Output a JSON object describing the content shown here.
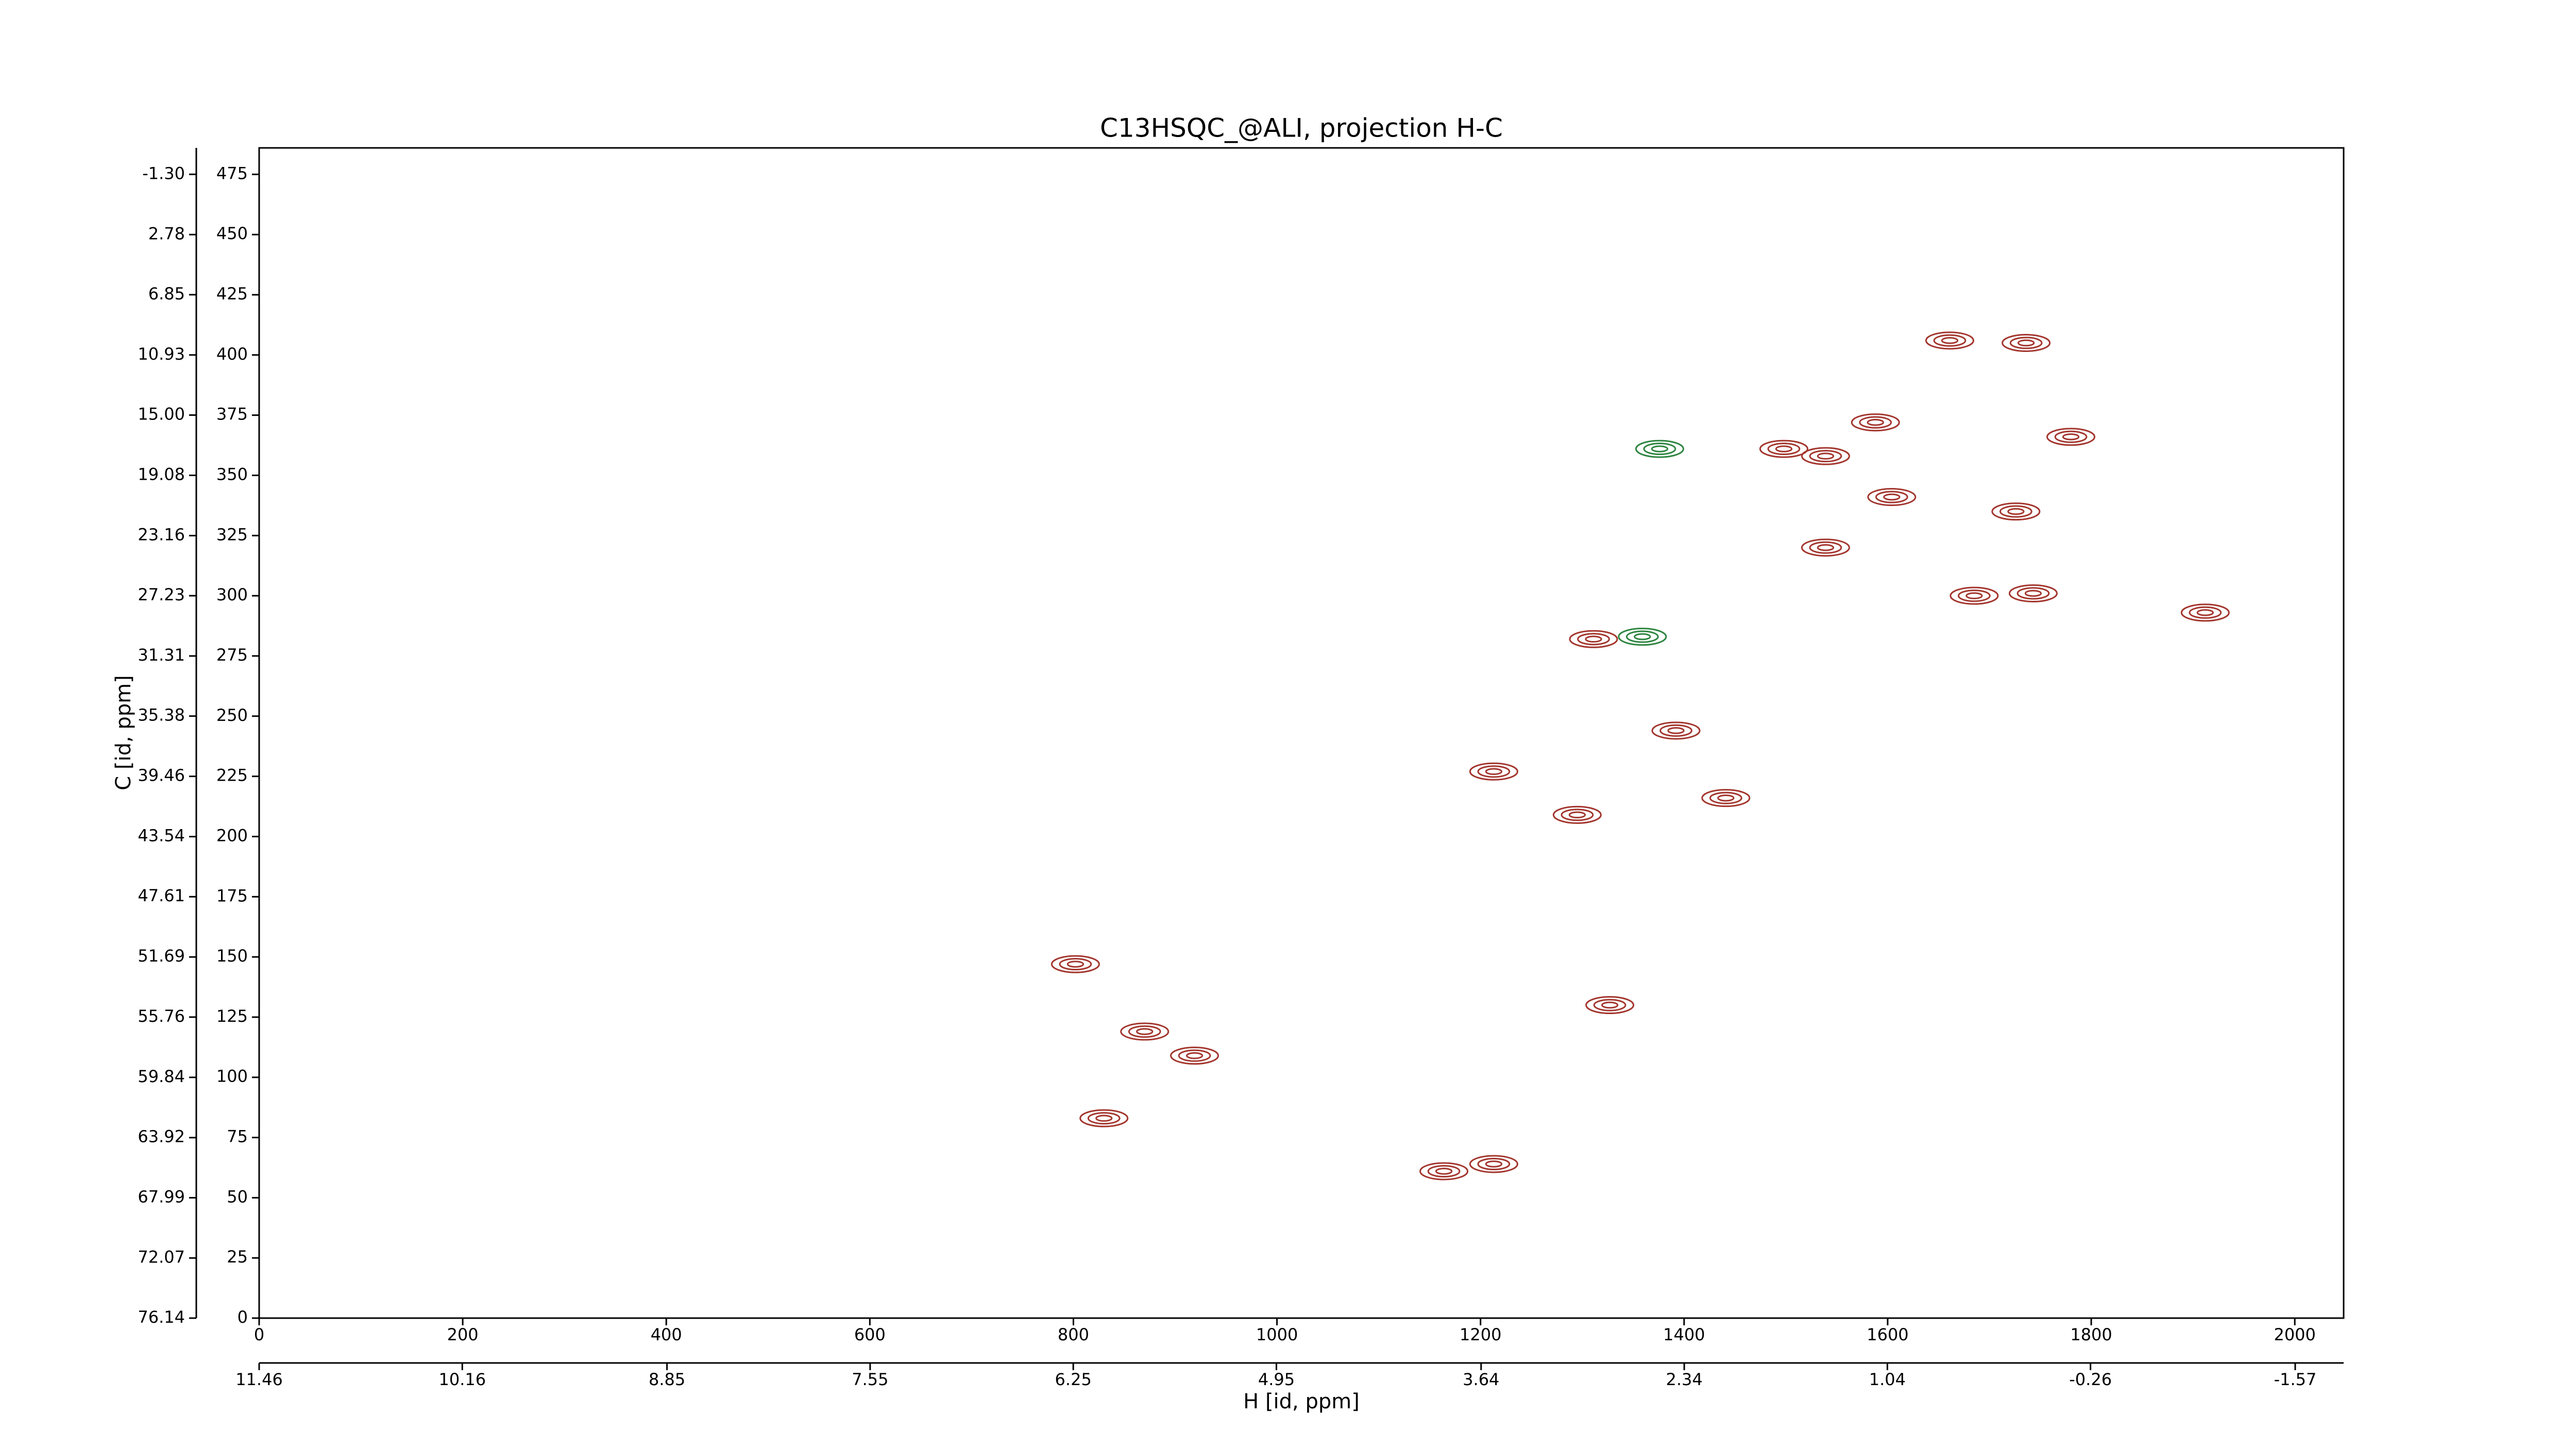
{
  "chart_data": {
    "type": "contour",
    "title": "C13HSQC_@ALI, projection H-C",
    "xlabel": "H [id, ppm]",
    "ylabel": "C [id, ppm]",
    "xlim": [
      0,
      2048
    ],
    "xticks": [
      0,
      200,
      400,
      600,
      800,
      1000,
      1200,
      1400,
      1600,
      1800,
      2000
    ],
    "x2lim": [
      11.46,
      -1.88
    ],
    "x2ticks": [
      11.46,
      10.16,
      8.85,
      7.55,
      6.25,
      4.95,
      3.64,
      2.34,
      1.04,
      -0.26,
      -1.57
    ],
    "ylim": [
      0,
      486
    ],
    "yticks": [
      0,
      25,
      50,
      75,
      100,
      125,
      150,
      175,
      200,
      225,
      250,
      275,
      300,
      325,
      350,
      375,
      400,
      425,
      450,
      475
    ],
    "y2lim": [
      76.14,
      -3.09
    ],
    "y2ticks": [
      {
        "value": -1.3,
        "label": "-1.30"
      },
      2.78,
      6.85,
      10.93,
      {
        "value": 15,
        "label": "15.00"
      },
      19.08,
      23.16,
      27.23,
      31.31,
      35.38,
      39.46,
      43.54,
      47.61,
      51.69,
      55.76,
      59.84,
      63.92,
      67.99,
      72.07,
      76.14
    ],
    "series": [
      {
        "color": "#a3362e",
        "x": [
          1736,
          1780,
          1912,
          1743,
          1726,
          802,
          1661,
          1588,
          1539,
          1498,
          1604,
          1539,
          1311,
          1392,
          1295,
          1441,
          1213,
          870,
          919,
          1164,
          1213,
          830,
          1327,
          1685
        ],
        "values": [
          405,
          366,
          293,
          301,
          335,
          147,
          406,
          372,
          358,
          361,
          341,
          320,
          282,
          244,
          209,
          216,
          227,
          119,
          109,
          61,
          64,
          83,
          130,
          300
        ]
      },
      {
        "color": "#2e8540",
        "x": [
          1376,
          1359
        ],
        "values": [
          361,
          283
        ]
      }
    ]
  }
}
